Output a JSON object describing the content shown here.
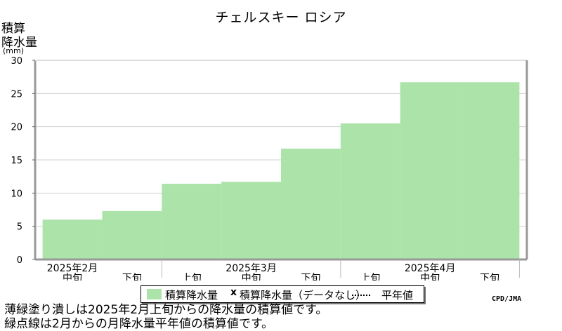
{
  "title": "チェルスキー ロシア",
  "ylabel_line1": "積算",
  "ylabel_line2": "降水量",
  "yunit": "(mm)",
  "colors": {
    "fill": "#abe3a9",
    "frame": "#999999",
    "grid": "#d0d0d0"
  },
  "chart_data": {
    "type": "area",
    "title": "チェルスキー ロシア",
    "ylabel": "積算降水量 (mm)",
    "ylim": [
      0,
      30
    ],
    "yticks": [
      0,
      5,
      10,
      15,
      20,
      25,
      30
    ],
    "grid": true,
    "categories": [
      "2025年2月 中旬",
      "2025年2月 下旬",
      "2025年3月 上旬",
      "2025年3月 中旬",
      "2025年3月 下旬",
      "2025年4月 上旬",
      "2025年4月 中旬",
      "2025年4月 下旬"
    ],
    "series": [
      {
        "name": "積算降水量",
        "values": [
          6.0,
          7.3,
          11.4,
          11.7,
          16.7,
          20.5,
          26.7,
          26.7
        ]
      }
    ],
    "x_tick_labels": [
      {
        "month": "2025年2月",
        "dekad": "中旬"
      },
      {
        "month": "",
        "dekad": "下旬"
      },
      {
        "month": "",
        "dekad": "上旬"
      },
      {
        "month": "2025年3月",
        "dekad": "中旬"
      },
      {
        "month": "",
        "dekad": "下旬"
      },
      {
        "month": "",
        "dekad": "上旬"
      },
      {
        "month": "2025年4月",
        "dekad": "中旬"
      },
      {
        "month": "",
        "dekad": "下旬"
      }
    ]
  },
  "legend": {
    "item1": "積算降水量",
    "marker": "x",
    "item2": "積算降水量（データなし）",
    "item3": "平年値"
  },
  "credit": "CPD/JMA",
  "note_line1": "薄緑塗り潰しは2025年2月上旬からの降水量の積算値です。",
  "note_line2": "緑点線は2月からの月降水量平年値の積算値です。"
}
